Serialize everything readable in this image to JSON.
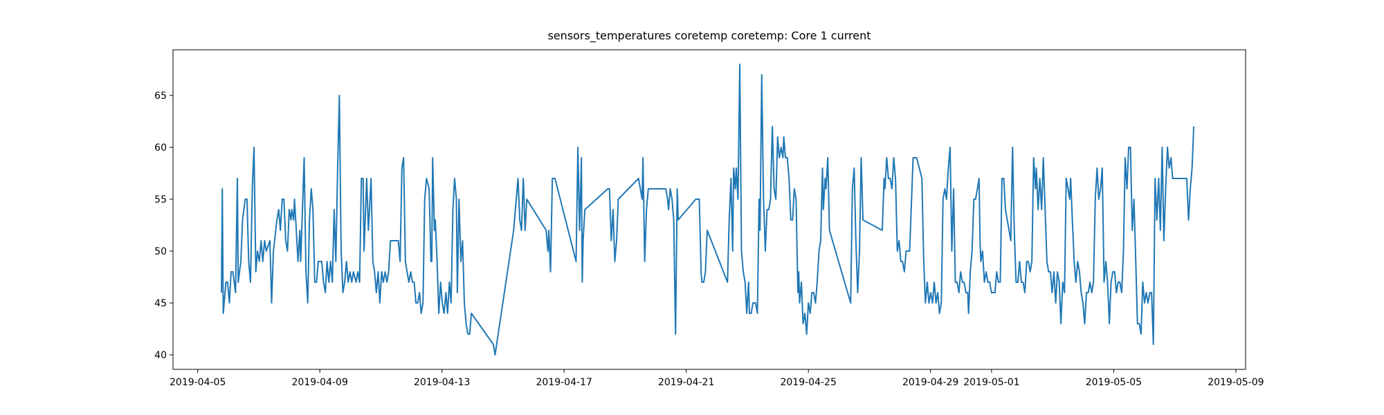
{
  "chart_data": {
    "type": "line",
    "title": "sensors_temperatures coretemp coretemp: Core 1 current",
    "color": "#1f77b4",
    "xlim": [
      "2019-04-04T04:35",
      "2019-05-09T07:40"
    ],
    "xticks": [
      "2019-04-05",
      "2019-04-09",
      "2019-04-13",
      "2019-04-17",
      "2019-04-21",
      "2019-04-25",
      "2019-04-29",
      "2019-05-01",
      "2019-05-05",
      "2019-05-09"
    ],
    "ylim": [
      38.6,
      69.4
    ],
    "yticks": [
      40,
      45,
      50,
      55,
      60,
      65
    ],
    "x": [
      "2019-04-05T18:40",
      "2019-04-05T19:20",
      "2019-04-05T20:05",
      "2019-04-05T22:10",
      "2019-04-05T23:30",
      "2019-04-06T00:55",
      "2019-04-06T02:15",
      "2019-04-06T03:40",
      "2019-04-06T05:45",
      "2019-04-06T07:10",
      "2019-04-06T07:50",
      "2019-04-06T09:55",
      "2019-04-06T11:15",
      "2019-04-06T13:20",
      "2019-04-06T14:45",
      "2019-04-06T16:05",
      "2019-04-06T17:30",
      "2019-04-06T18:55",
      "2019-04-06T20:15",
      "2019-04-06T21:40",
      "2019-04-06T23:00",
      "2019-04-07T00:25",
      "2019-04-07T01:50",
      "2019-04-07T03:10",
      "2019-04-07T04:35",
      "2019-04-07T05:55",
      "2019-04-07T08:45",
      "2019-04-07T10:05",
      "2019-04-07T11:30",
      "2019-04-07T14:15",
      "2019-04-07T15:40",
      "2019-04-07T17:00",
      "2019-04-07T18:25",
      "2019-04-07T19:45",
      "2019-04-07T21:10",
      "2019-04-07T22:35",
      "2019-04-07T23:55",
      "2019-04-08T01:20",
      "2019-04-08T02:00",
      "2019-04-08T03:25",
      "2019-04-08T04:05",
      "2019-04-08T05:30",
      "2019-04-08T06:50",
      "2019-04-08T08:15",
      "2019-04-08T08:55",
      "2019-04-08T10:20",
      "2019-04-08T11:40",
      "2019-04-08T13:05",
      "2019-04-08T14:30",
      "2019-04-08T15:50",
      "2019-04-08T17:15",
      "2019-04-08T18:35",
      "2019-04-08T20:00",
      "2019-04-08T21:25",
      "2019-04-08T22:45",
      "2019-04-09T01:30",
      "2019-04-09T02:55",
      "2019-04-09T04:20",
      "2019-04-09T05:40",
      "2019-04-09T07:05",
      "2019-04-09T08:25",
      "2019-04-09T09:50",
      "2019-04-09T11:15",
      "2019-04-09T12:35",
      "2019-04-09T14:00",
      "2019-04-09T15:20",
      "2019-04-09T16:45",
      "2019-04-09T18:10",
      "2019-04-09T19:30",
      "2019-04-09T20:55",
      "2019-04-09T22:15",
      "2019-04-09T23:40",
      "2019-04-10T01:05",
      "2019-04-10T02:25",
      "2019-04-10T04:30",
      "2019-04-10T05:55",
      "2019-04-10T07:15",
      "2019-04-10T08:40",
      "2019-04-10T10:00",
      "2019-04-10T10:45",
      "2019-04-10T12:50",
      "2019-04-10T14:10",
      "2019-04-10T16:15",
      "2019-04-10T17:40",
      "2019-04-10T19:00",
      "2019-04-10T20:25",
      "2019-04-10T21:50",
      "2019-04-10T23:10",
      "2019-04-11T00:35",
      "2019-04-11T01:55",
      "2019-04-11T03:20",
      "2019-04-11T04:45",
      "2019-04-11T06:05",
      "2019-04-11T07:30",
      "2019-04-11T13:40",
      "2019-04-11T15:05",
      "2019-04-11T16:30",
      "2019-04-11T17:50",
      "2019-04-11T19:15",
      "2019-04-11T20:35",
      "2019-04-11T22:00",
      "2019-04-11T23:25",
      "2019-04-12T00:45",
      "2019-04-12T02:10",
      "2019-04-12T03:30",
      "2019-04-12T04:55",
      "2019-04-12T06:20",
      "2019-04-12T07:40",
      "2019-04-12T09:05",
      "2019-04-12T10:25",
      "2019-04-12T11:50",
      "2019-04-12T13:55",
      "2019-04-12T15:20",
      "2019-04-12T16:00",
      "2019-04-12T16:40",
      "2019-04-12T18:05",
      "2019-04-12T18:45",
      "2019-04-12T20:10",
      "2019-04-12T21:30",
      "2019-04-12T22:55",
      "2019-04-13T00:15",
      "2019-04-13T01:40",
      "2019-04-13T03:05",
      "2019-04-13T04:25",
      "2019-04-13T05:50",
      "2019-04-13T07:10",
      "2019-04-13T08:35",
      "2019-04-13T09:55",
      "2019-04-13T11:20",
      "2019-04-13T12:05",
      "2019-04-13T13:25",
      "2019-04-13T14:50",
      "2019-04-13T16:10",
      "2019-04-13T17:35",
      "2019-04-13T19:00",
      "2019-04-13T20:20",
      "2019-04-13T21:45",
      "2019-04-13T23:05",
      "2019-04-14T16:25",
      "2019-04-14T17:45",
      "2019-04-15T08:20",
      "2019-04-15T10:25",
      "2019-04-15T11:45",
      "2019-04-15T13:10",
      "2019-04-15T14:30",
      "2019-04-15T15:55",
      "2019-04-15T17:20",
      "2019-04-15T18:40",
      "2019-04-16T09:55",
      "2019-04-16T11:15",
      "2019-04-16T12:00",
      "2019-04-16T13:20",
      "2019-04-16T14:45",
      "2019-04-16T16:50",
      "2019-04-17T09:25",
      "2019-04-17T10:50",
      "2019-04-17T12:10",
      "2019-04-17T13:35",
      "2019-04-17T14:15",
      "2019-04-17T14:55",
      "2019-04-17T16:20",
      "2019-04-18T10:20",
      "2019-04-18T11:40",
      "2019-04-18T13:05",
      "2019-04-18T14:30",
      "2019-04-18T15:50",
      "2019-04-18T17:15",
      "2019-04-18T18:35",
      "2019-04-19T10:30",
      "2019-04-19T11:55",
      "2019-04-19T13:20",
      "2019-04-19T14:00",
      "2019-04-19T15:20",
      "2019-04-19T16:45",
      "2019-04-19T18:10",
      "2019-04-20T07:55",
      "2019-04-20T09:20",
      "2019-04-20T10:05",
      "2019-04-20T11:25",
      "2019-04-20T12:50",
      "2019-04-20T14:10",
      "2019-04-20T15:35",
      "2019-04-20T16:55",
      "2019-04-20T17:40",
      "2019-04-21T07:30",
      "2019-04-21T10:15",
      "2019-04-21T11:40",
      "2019-04-21T12:20",
      "2019-04-21T13:45",
      "2019-04-21T15:05",
      "2019-04-21T16:30",
      "2019-04-22T08:25",
      "2019-04-22T09:45",
      "2019-04-22T11:10",
      "2019-04-22T12:30",
      "2019-04-22T13:15",
      "2019-04-22T14:35",
      "2019-04-22T15:20",
      "2019-04-22T16:40",
      "2019-04-22T18:05",
      "2019-04-22T19:25",
      "2019-04-22T20:50",
      "2019-04-22T22:15",
      "2019-04-22T23:35",
      "2019-04-23T01:00",
      "2019-04-23T01:40",
      "2019-04-23T03:05",
      "2019-04-23T04:25",
      "2019-04-23T06:30",
      "2019-04-23T07:55",
      "2019-04-23T09:15",
      "2019-04-23T10:00",
      "2019-04-23T11:20",
      "2019-04-23T12:45",
      "2019-04-23T14:10",
      "2019-04-23T15:30",
      "2019-04-23T16:55",
      "2019-04-23T18:15",
      "2019-04-23T19:40",
      "2019-04-23T21:05",
      "2019-04-23T22:25",
      "2019-04-23T23:50",
      "2019-04-24T01:10",
      "2019-04-24T02:35",
      "2019-04-24T04:00",
      "2019-04-24T04:40",
      "2019-04-24T06:00",
      "2019-04-24T07:25",
      "2019-04-24T08:50",
      "2019-04-24T10:10",
      "2019-04-24T11:35",
      "2019-04-24T12:55",
      "2019-04-24T14:20",
      "2019-04-24T15:45",
      "2019-04-24T16:25",
      "2019-04-24T17:05",
      "2019-04-24T18:30",
      "2019-04-24T19:50",
      "2019-04-24T21:15",
      "2019-04-24T22:40",
      "2019-04-25T00:00",
      "2019-04-25T01:25",
      "2019-04-25T02:45",
      "2019-04-25T04:10",
      "2019-04-25T05:35",
      "2019-04-25T06:55",
      "2019-04-25T08:20",
      "2019-04-25T09:40",
      "2019-04-25T11:05",
      "2019-04-25T11:45",
      "2019-04-25T13:10",
      "2019-04-25T13:50",
      "2019-04-25T15:15",
      "2019-04-25T16:35",
      "2019-04-26T09:15",
      "2019-04-26T10:35",
      "2019-04-26T12:00",
      "2019-04-26T13:20",
      "2019-04-26T14:45",
      "2019-04-26T16:10",
      "2019-04-26T17:30",
      "2019-04-26T18:55",
      "2019-04-27T10:05",
      "2019-04-27T11:30",
      "2019-04-27T12:10",
      "2019-04-27T13:35",
      "2019-04-27T14:55",
      "2019-04-27T16:20",
      "2019-04-27T17:45",
      "2019-04-27T19:05",
      "2019-04-27T20:30",
      "2019-04-27T21:55",
      "2019-04-27T23:15",
      "2019-04-28T00:40",
      "2019-04-28T02:00",
      "2019-04-28T03:25",
      "2019-04-28T04:50",
      "2019-04-28T07:35",
      "2019-04-28T10:20",
      "2019-04-28T13:05",
      "2019-04-28T17:15",
      "2019-04-28T18:40",
      "2019-04-28T20:00",
      "2019-04-28T21:25",
      "2019-04-28T22:45",
      "2019-04-29T00:10",
      "2019-04-29T01:35",
      "2019-04-29T02:55",
      "2019-04-29T04:20",
      "2019-04-29T05:40",
      "2019-04-29T07:05",
      "2019-04-29T08:30",
      "2019-04-29T09:50",
      "2019-04-29T11:15",
      "2019-04-29T12:35",
      "2019-04-29T14:00",
      "2019-04-29T15:25",
      "2019-04-29T16:45",
      "2019-04-29T18:10",
      "2019-04-29T19:30",
      "2019-04-29T20:55",
      "2019-04-29T22:20",
      "2019-04-29T23:40",
      "2019-04-30T01:05",
      "2019-04-30T02:25",
      "2019-04-30T03:50",
      "2019-04-30T05:15",
      "2019-04-30T05:55",
      "2019-04-30T07:15",
      "2019-04-30T08:40",
      "2019-04-30T10:05",
      "2019-04-30T11:25",
      "2019-04-30T12:50",
      "2019-04-30T14:10",
      "2019-04-30T14:55",
      "2019-04-30T15:35",
      "2019-04-30T16:55",
      "2019-04-30T18:20",
      "2019-04-30T19:45",
      "2019-04-30T21:05",
      "2019-04-30T22:30",
      "2019-04-30T23:55",
      "2019-05-01T02:40",
      "2019-05-01T04:00",
      "2019-05-01T05:25",
      "2019-05-01T06:50",
      "2019-05-01T08:10",
      "2019-05-01T09:35",
      "2019-05-01T10:55",
      "2019-05-01T12:20",
      "2019-05-01T13:45",
      "2019-05-01T15:05",
      "2019-05-01T16:30",
      "2019-05-01T17:50",
      "2019-05-01T19:15",
      "2019-05-01T20:40",
      "2019-05-01T22:00",
      "2019-05-01T23:25",
      "2019-05-02T00:45",
      "2019-05-02T02:10",
      "2019-05-02T03:35",
      "2019-05-02T04:55",
      "2019-05-02T06:20",
      "2019-05-02T07:40",
      "2019-05-02T09:05",
      "2019-05-02T10:30",
      "2019-05-02T11:10",
      "2019-05-02T12:35",
      "2019-05-02T13:55",
      "2019-05-02T15:20",
      "2019-05-02T16:40",
      "2019-05-02T18:05",
      "2019-05-02T19:30",
      "2019-05-02T20:50",
      "2019-05-02T22:15",
      "2019-05-02T23:35",
      "2019-05-03T01:00",
      "2019-05-03T02:25",
      "2019-05-03T03:45",
      "2019-05-03T05:10",
      "2019-05-03T06:30",
      "2019-05-03T07:55",
      "2019-05-03T09:20",
      "2019-05-03T10:40",
      "2019-05-03T12:05",
      "2019-05-03T13:25",
      "2019-05-03T14:10",
      "2019-05-03T15:30",
      "2019-05-03T16:55",
      "2019-05-03T18:15",
      "2019-05-03T19:40",
      "2019-05-03T21:05",
      "2019-05-03T22:25",
      "2019-05-03T23:50",
      "2019-05-04T01:10",
      "2019-05-04T02:35",
      "2019-05-04T04:00",
      "2019-05-04T05:20",
      "2019-05-04T06:45",
      "2019-05-04T08:05",
      "2019-05-04T09:30",
      "2019-05-04T10:55",
      "2019-05-04T12:15",
      "2019-05-04T13:40",
      "2019-05-04T15:00",
      "2019-05-04T16:25",
      "2019-05-04T17:50",
      "2019-05-04T19:10",
      "2019-05-04T20:35",
      "2019-05-04T21:55",
      "2019-05-04T23:20",
      "2019-05-05T00:45",
      "2019-05-05T02:05",
      "2019-05-05T03:30",
      "2019-05-05T04:50",
      "2019-05-05T06:15",
      "2019-05-05T07:40",
      "2019-05-05T09:00",
      "2019-05-05T10:25",
      "2019-05-05T11:45",
      "2019-05-05T13:10",
      "2019-05-05T14:35",
      "2019-05-05T15:55",
      "2019-05-05T17:20",
      "2019-05-05T18:40",
      "2019-05-05T20:05",
      "2019-05-05T21:30",
      "2019-05-05T22:50",
      "2019-05-06T00:15",
      "2019-05-06T01:35",
      "2019-05-06T03:00",
      "2019-05-06T04:25",
      "2019-05-06T05:45",
      "2019-05-06T07:10",
      "2019-05-06T08:30",
      "2019-05-06T09:55",
      "2019-05-06T11:20",
      "2019-05-06T12:40",
      "2019-05-06T14:05",
      "2019-05-06T15:25",
      "2019-05-06T16:50",
      "2019-05-06T18:15",
      "2019-05-06T19:35",
      "2019-05-06T21:00",
      "2019-05-06T22:20",
      "2019-05-07T09:25",
      "2019-05-07T10:50",
      "2019-05-07T12:10",
      "2019-05-07T13:35",
      "2019-05-07T14:55"
    ],
    "values": [
      46,
      56,
      44,
      47,
      47,
      45,
      48,
      48,
      46,
      57,
      47,
      49,
      53,
      55,
      55,
      49,
      47,
      56,
      60,
      48,
      50,
      49,
      51,
      49,
      51,
      50,
      51,
      45,
      50,
      53,
      54,
      52,
      55,
      55,
      51,
      50,
      54,
      53,
      54,
      53,
      55,
      52,
      49,
      52,
      49,
      54,
      59,
      48,
      45,
      53,
      56,
      54,
      47,
      47,
      49,
      49,
      47,
      46,
      49,
      47,
      49,
      47,
      54,
      49,
      58,
      65,
      50,
      46,
      47,
      49,
      47,
      48,
      47,
      48,
      47,
      48,
      47,
      57,
      57,
      50,
      57,
      52,
      57,
      49,
      48,
      46,
      48,
      45,
      48,
      47,
      48,
      47,
      48,
      51,
      51,
      49,
      58,
      59,
      49,
      48,
      47,
      48,
      47,
      47,
      45,
      45,
      46,
      44,
      45,
      55,
      57,
      56,
      49,
      49,
      59,
      52,
      53,
      49,
      44,
      47,
      45,
      44,
      46,
      44,
      47,
      45,
      54,
      57,
      55,
      46,
      55,
      49,
      51,
      45,
      43,
      42,
      42,
      44,
      41,
      40,
      52,
      55,
      57,
      53,
      52,
      57,
      52,
      55,
      52,
      50,
      52,
      48,
      57,
      57,
      49,
      60,
      52,
      59,
      47,
      51,
      54,
      56,
      56,
      51,
      54,
      49,
      51,
      55,
      57,
      56,
      55,
      59,
      49,
      54,
      56,
      56,
      55,
      54,
      56,
      55,
      53,
      42,
      56,
      53,
      55,
      55,
      48,
      47,
      47,
      48,
      52,
      47,
      53,
      57,
      50,
      58,
      56,
      58,
      55,
      68,
      50,
      48,
      47,
      44,
      47,
      44,
      44,
      45,
      45,
      44,
      55,
      52,
      67,
      55,
      50,
      54,
      54,
      55,
      62,
      56,
      55,
      61,
      59,
      60,
      59,
      61,
      59,
      59,
      57,
      53,
      53,
      56,
      55,
      46,
      48,
      45,
      47,
      43,
      44,
      42,
      45,
      44,
      46,
      46,
      45,
      47,
      50,
      51,
      58,
      54,
      57,
      56,
      59,
      52,
      45,
      56,
      58,
      51,
      46,
      50,
      59,
      53,
      52,
      57,
      56,
      59,
      57,
      57,
      56,
      59,
      57,
      50,
      51,
      49,
      49,
      48,
      50,
      50,
      59,
      59,
      57,
      49,
      45,
      47,
      45,
      46,
      45,
      47,
      45,
      46,
      44,
      45,
      55,
      56,
      55,
      58,
      60,
      50,
      56,
      47,
      47,
      46,
      48,
      47,
      47,
      46,
      46,
      44,
      48,
      50,
      55,
      55,
      56,
      57,
      51,
      49,
      50,
      47,
      48,
      47,
      47,
      46,
      46,
      48,
      47,
      47,
      57,
      57,
      54,
      53,
      52,
      51,
      60,
      52,
      47,
      47,
      49,
      47,
      47,
      46,
      49,
      49,
      48,
      49,
      59,
      56,
      58,
      54,
      57,
      54,
      59,
      54,
      49,
      48,
      48,
      46,
      48,
      45,
      48,
      47,
      43,
      47,
      46,
      57,
      56,
      55,
      57,
      53,
      49,
      47,
      49,
      48,
      46,
      45,
      43,
      46,
      46,
      47,
      46,
      47,
      55,
      58,
      55,
      56,
      58,
      47,
      49,
      47,
      43,
      47,
      48,
      48,
      46,
      47,
      47,
      46,
      50,
      59,
      56,
      60,
      60,
      52,
      55,
      49,
      43,
      43,
      42,
      47,
      45,
      46,
      45,
      46,
      46,
      41,
      57,
      53,
      57,
      52,
      60,
      51,
      56,
      60,
      58,
      59,
      57,
      57,
      53,
      56,
      58,
      62
    ]
  }
}
